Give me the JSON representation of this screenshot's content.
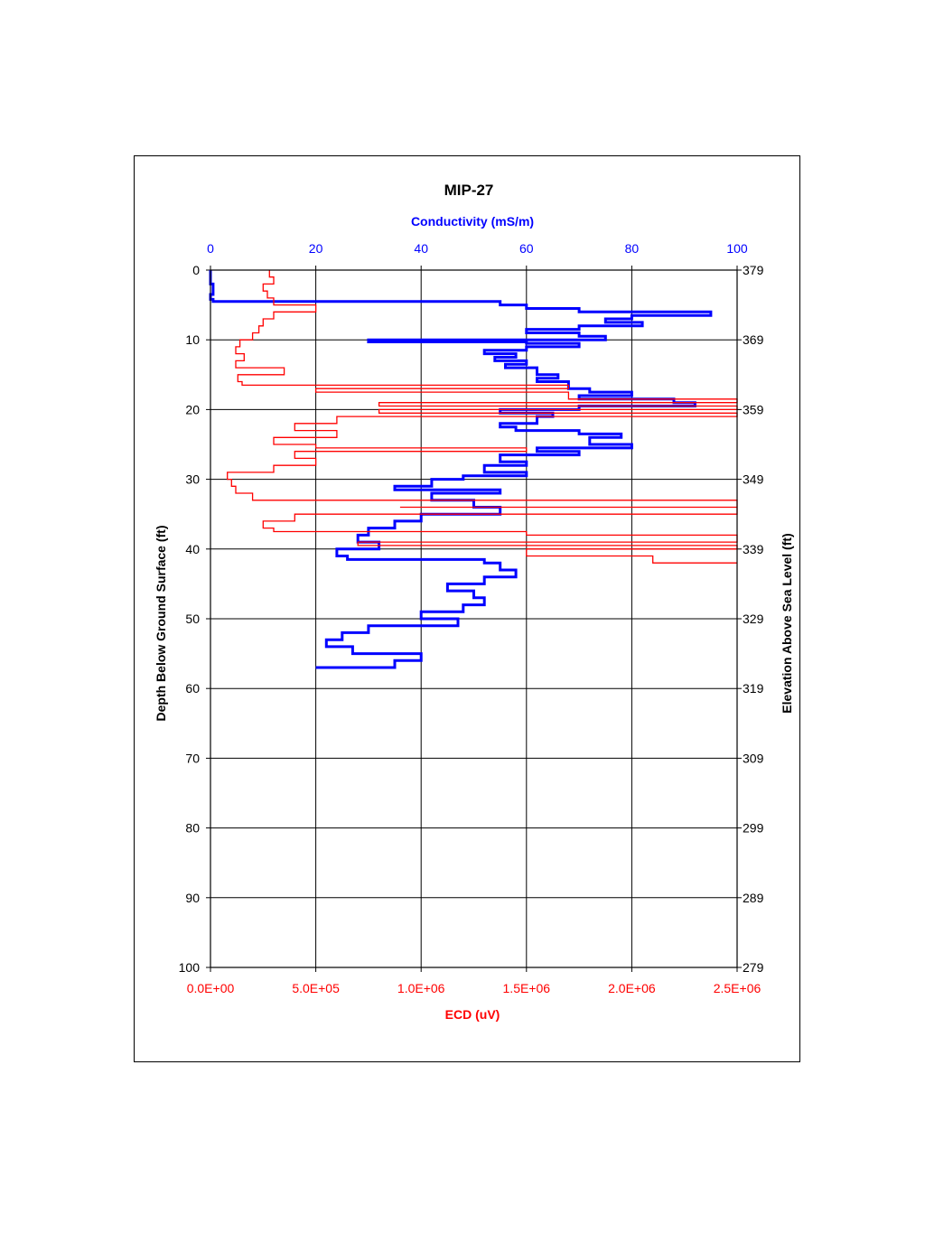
{
  "chart_data": {
    "type": "line",
    "title": "MIP-27",
    "top_axis": {
      "label": "Conductivity (mS/m)",
      "range": [
        0,
        100
      ],
      "ticks": [
        "0",
        "20",
        "40",
        "60",
        "80",
        "100"
      ],
      "color": "#0000ff"
    },
    "bottom_axis": {
      "label": "ECD (uV)",
      "range": [
        0,
        2500000
      ],
      "ticks": [
        "0.0E+00",
        "5.0E+05",
        "1.0E+06",
        "1.5E+06",
        "2.0E+06",
        "2.5E+06"
      ],
      "color": "#ff0000"
    },
    "left_axis": {
      "label": "Depth Below Ground Surface (ft)",
      "range": [
        0,
        100
      ],
      "inverted": true,
      "ticks": [
        "0",
        "10",
        "20",
        "30",
        "40",
        "50",
        "60",
        "70",
        "80",
        "90",
        "100"
      ]
    },
    "right_axis": {
      "label": "Elevation Above Sea Level (ft)",
      "range": [
        379,
        279
      ],
      "ticks": [
        "379",
        "369",
        "359",
        "349",
        "339",
        "329",
        "319",
        "309",
        "299",
        "289",
        "279"
      ]
    },
    "grid": true,
    "series": [
      {
        "color": "#0000ff",
        "x_axis": "top",
        "points": [
          [
            0,
            0
          ],
          [
            0.5,
            2
          ],
          [
            0,
            3.5
          ],
          [
            0.5,
            4.2
          ],
          [
            55,
            4.5
          ],
          [
            60,
            5
          ],
          [
            70,
            5.5
          ],
          [
            85,
            6
          ],
          [
            95,
            6
          ],
          [
            80,
            6.5
          ],
          [
            75,
            7
          ],
          [
            82,
            7.5
          ],
          [
            70,
            8
          ],
          [
            60,
            8.5
          ],
          [
            70,
            9
          ],
          [
            75,
            9.5
          ],
          [
            55,
            10
          ],
          [
            40,
            10
          ],
          [
            30,
            10
          ],
          [
            60,
            10.3
          ],
          [
            70,
            10.5
          ],
          [
            60,
            11
          ],
          [
            52,
            11.5
          ],
          [
            58,
            12
          ],
          [
            54,
            12.5
          ],
          [
            60,
            13
          ],
          [
            56,
            13.5
          ],
          [
            62,
            14
          ],
          [
            66,
            15
          ],
          [
            62,
            15.5
          ],
          [
            68,
            16
          ],
          [
            72,
            17
          ],
          [
            80,
            17.5
          ],
          [
            70,
            18
          ],
          [
            88,
            18.5
          ],
          [
            92,
            19
          ],
          [
            70,
            19.5
          ],
          [
            55,
            20
          ],
          [
            65,
            20.5
          ],
          [
            62,
            21
          ],
          [
            55,
            22
          ],
          [
            58,
            22.5
          ],
          [
            70,
            23
          ],
          [
            78,
            23.5
          ],
          [
            72,
            24
          ],
          [
            80,
            25
          ],
          [
            62,
            25.5
          ],
          [
            70,
            26
          ],
          [
            55,
            26.5
          ],
          [
            60,
            27.5
          ],
          [
            52,
            28
          ],
          [
            60,
            29
          ],
          [
            48,
            29.5
          ],
          [
            42,
            30
          ],
          [
            35,
            31
          ],
          [
            55,
            31.5
          ],
          [
            42,
            32
          ],
          [
            50,
            33
          ],
          [
            55,
            34
          ],
          [
            40,
            35
          ],
          [
            35,
            36
          ],
          [
            30,
            37
          ],
          [
            28,
            38
          ],
          [
            32,
            39
          ],
          [
            24,
            40
          ],
          [
            26,
            41
          ],
          [
            52,
            41.5
          ],
          [
            55,
            42
          ],
          [
            58,
            43
          ],
          [
            52,
            44
          ],
          [
            45,
            45
          ],
          [
            50,
            46
          ],
          [
            52,
            47
          ],
          [
            48,
            48
          ],
          [
            40,
            49
          ],
          [
            47,
            50
          ],
          [
            30,
            51
          ],
          [
            25,
            52
          ],
          [
            22,
            53
          ],
          [
            27,
            54
          ],
          [
            40,
            55
          ],
          [
            35,
            56
          ],
          [
            20,
            57
          ]
        ]
      },
      {
        "color": "#ff0000",
        "x_axis": "bottom",
        "points": [
          [
            280000,
            0
          ],
          [
            300000,
            1
          ],
          [
            250000,
            2
          ],
          [
            270000,
            3
          ],
          [
            300000,
            4
          ],
          [
            500000,
            5
          ],
          [
            300000,
            6
          ],
          [
            250000,
            7
          ],
          [
            230000,
            8
          ],
          [
            200000,
            9
          ],
          [
            140000,
            10
          ],
          [
            120000,
            11
          ],
          [
            160000,
            12
          ],
          [
            120000,
            13
          ],
          [
            350000,
            14
          ],
          [
            130000,
            15
          ],
          [
            150000,
            16
          ],
          [
            1700000,
            16.5
          ],
          [
            500000,
            17
          ],
          [
            1700000,
            17.5
          ],
          [
            2500000,
            18.5
          ],
          [
            800000,
            19
          ],
          [
            2500000,
            19.5
          ],
          [
            800000,
            20
          ],
          [
            2500000,
            20.5
          ],
          [
            600000,
            21
          ],
          [
            400000,
            22
          ],
          [
            600000,
            23
          ],
          [
            300000,
            24
          ],
          [
            500000,
            25
          ],
          [
            1500000,
            25.5
          ],
          [
            400000,
            26
          ],
          [
            500000,
            27
          ],
          [
            300000,
            28
          ],
          [
            80000,
            29
          ],
          [
            100000,
            30
          ],
          [
            120000,
            31
          ],
          [
            200000,
            32
          ],
          [
            1200000,
            33
          ],
          [
            2500000,
            33
          ],
          [
            900000,
            34
          ],
          [
            2500000,
            34
          ],
          [
            400000,
            35
          ],
          [
            250000,
            36
          ],
          [
            300000,
            37
          ],
          [
            1500000,
            37.5
          ],
          [
            2500000,
            38
          ],
          [
            700000,
            39
          ],
          [
            2500000,
            39.5
          ],
          [
            1500000,
            40
          ],
          [
            2100000,
            41
          ],
          [
            2500000,
            42
          ]
        ]
      }
    ]
  }
}
